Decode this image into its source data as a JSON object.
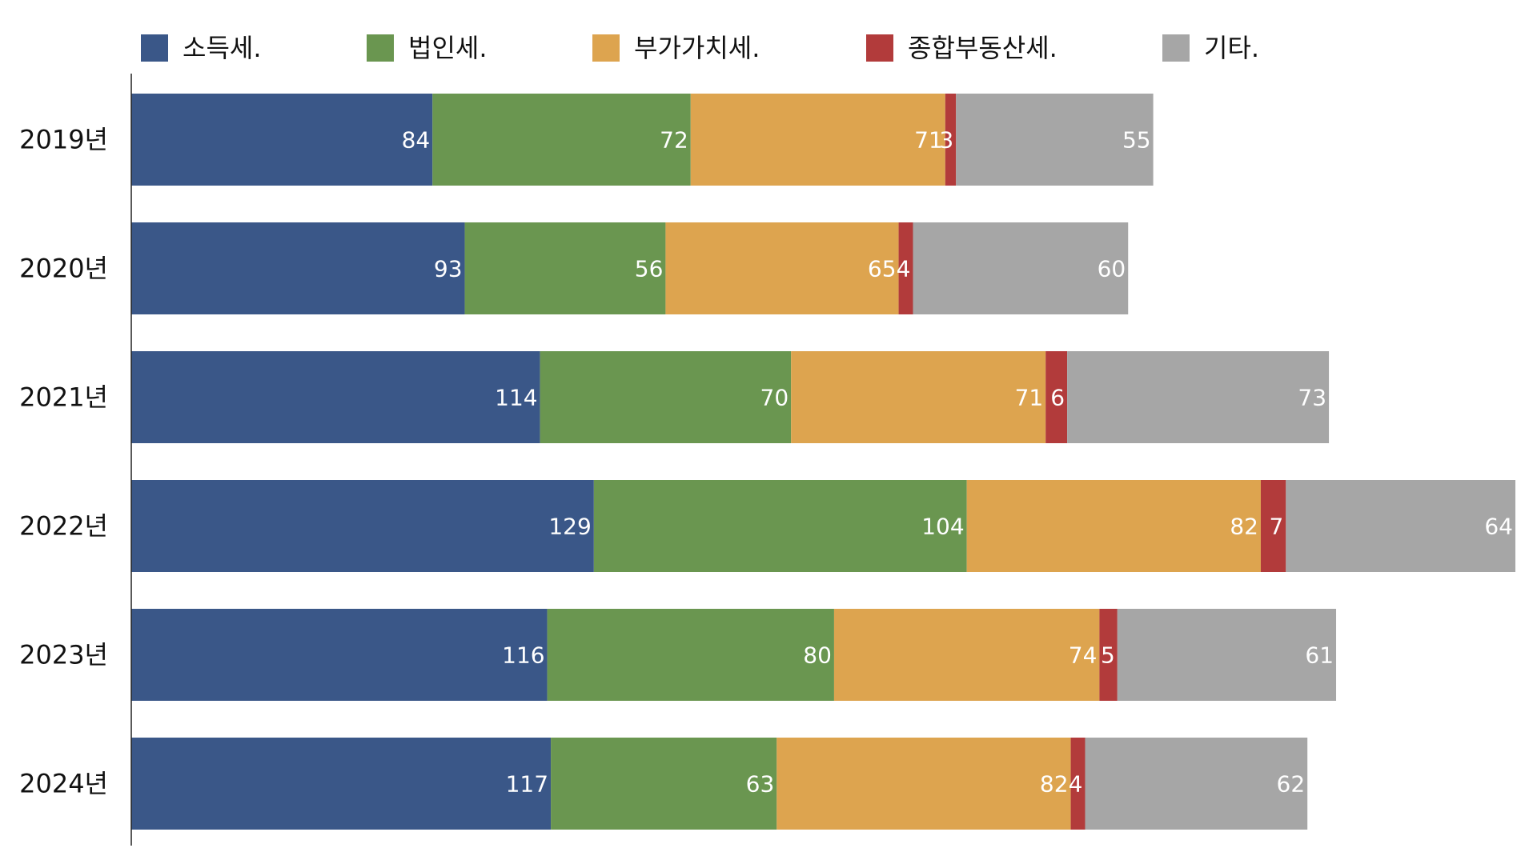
{
  "chart_data": {
    "type": "bar",
    "orientation": "horizontal",
    "stacked": true,
    "categories": [
      "2019년",
      "2020년",
      "2021년",
      "2022년",
      "2023년",
      "2024년"
    ],
    "series": [
      {
        "name": "소득세.",
        "color": "#3a5788",
        "values": [
          84,
          93,
          114,
          129,
          116,
          117
        ]
      },
      {
        "name": "법인세.",
        "color": "#6a9650",
        "values": [
          72,
          56,
          70,
          104,
          80,
          63
        ]
      },
      {
        "name": "부가가치세.",
        "color": "#dda44f",
        "values": [
          71,
          65,
          71,
          82,
          74,
          82
        ]
      },
      {
        "name": "종합부동산세.",
        "color": "#b23b3b",
        "values": [
          3,
          4,
          6,
          7,
          5,
          4
        ]
      },
      {
        "name": "기타.",
        "color": "#a6a6a6",
        "values": [
          55,
          60,
          73,
          64,
          61,
          62
        ]
      }
    ],
    "xlim": [
      0,
      386
    ],
    "grid": false,
    "legend_position": "top"
  }
}
